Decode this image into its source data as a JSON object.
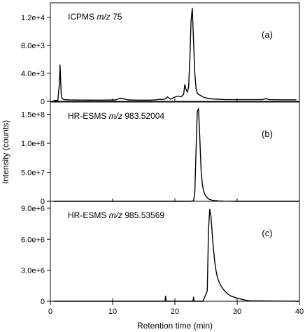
{
  "chart_data": {
    "type": "line",
    "shared_xlabel": "Retention time (min)",
    "shared_ylabel": "Intensity (counts)",
    "xlim": [
      0,
      40
    ],
    "xticks": [
      0,
      10,
      20,
      30,
      40
    ],
    "panels": [
      {
        "label_prefix": "ICPMS ",
        "label_mz": "m/z",
        "label_value": " 75",
        "letter": "(a)",
        "ylim": [
          0,
          14000
        ],
        "yticks": [
          0,
          4000,
          8000,
          12000
        ],
        "ytick_labels": [
          "0",
          "4.0e+3",
          "8.0e+3",
          "1.2e+4"
        ],
        "series": [
          {
            "x": [
              0.5,
              1.2,
              1.45,
              1.55,
              1.65,
              1.75,
              1.9,
              2.2,
              3.0,
              5.0,
              8.0,
              10.5,
              11.2,
              11.8,
              12.5,
              14.0,
              16.0,
              17.0,
              17.5,
              18.0,
              18.5,
              18.8,
              19.0,
              19.3,
              19.6,
              20.0,
              20.5,
              21.0,
              21.4,
              21.6,
              21.8,
              22.0,
              22.2,
              22.4,
              22.6,
              22.8,
              23.0,
              23.2,
              23.4,
              23.6,
              23.8,
              24.2,
              24.6,
              25.2,
              26.0,
              27.0,
              28.0,
              30.0,
              32.0,
              34.0,
              34.6,
              35.2,
              37.0,
              39.5
            ],
            "y": [
              100,
              150,
              2500,
              5200,
              3000,
              900,
              400,
              250,
              200,
              180,
              170,
              200,
              450,
              350,
              200,
              170,
              170,
              220,
              300,
              250,
              350,
              650,
              500,
              300,
              450,
              600,
              750,
              650,
              1000,
              2400,
              1700,
              1300,
              2000,
              6000,
              11500,
              13300,
              8500,
              4000,
              1800,
              1200,
              1000,
              800,
              600,
              450,
              350,
              300,
              260,
              240,
              240,
              240,
              380,
              240,
              220,
              220
            ]
          }
        ]
      },
      {
        "label_prefix": "HR-ESMS ",
        "label_mz": "m/z",
        "label_value": " 983.52004",
        "letter": "(b)",
        "ylim": [
          0,
          170000000
        ],
        "yticks": [
          0,
          50000000,
          100000000,
          150000000
        ],
        "ytick_labels": [
          "0",
          "5.0e+7",
          "1.0e+8",
          "1.5e+8"
        ],
        "series": [
          {
            "x": [
              0.5,
              10,
              20,
              22.5,
              23.0,
              23.2,
              23.4,
              23.6,
              23.8,
              24.0,
              24.2,
              24.4,
              24.6,
              24.9,
              25.2,
              25.6,
              26.2,
              27.0,
              28.0,
              30.0,
              40.0
            ],
            "y": [
              0,
              0,
              0,
              0,
              1000000,
              15000000,
              90000000,
              155000000,
              160000000,
              110000000,
              55000000,
              30000000,
              18000000,
              10000000,
              6000000,
              3000000,
              1500000,
              600000,
              200000,
              0,
              0
            ]
          }
        ]
      },
      {
        "label_prefix": "HR-ESMS ",
        "label_mz": "m/z",
        "label_value": " 985.53569",
        "letter": "(c)",
        "ylim": [
          0,
          9600000
        ],
        "yticks": [
          0,
          3000000,
          6000000,
          9000000
        ],
        "ytick_labels": [
          "0",
          "3.0e+6",
          "6.0e+6",
          "9.0e+6"
        ],
        "series": [
          {
            "x": [
              0.5,
              10,
              18.4,
              18.5,
              18.6,
              19.0,
              22.9,
              23.0,
              23.1,
              24.5,
              25.2,
              25.4,
              25.6,
              25.8,
              26.0,
              26.2,
              26.4,
              26.6,
              26.8,
              27.0,
              27.3,
              27.6,
              28.0,
              28.5,
              29.0,
              30.0,
              31.0,
              32.0,
              40.0
            ],
            "y": [
              0,
              0,
              0,
              500000,
              0,
              0,
              0,
              400000,
              0,
              0,
              1000000,
              7000000,
              8900000,
              8200000,
              6500000,
              5000000,
              3800000,
              3000000,
              2400000,
              2000000,
              1600000,
              1300000,
              1000000,
              700000,
              500000,
              300000,
              150000,
              50000,
              0
            ]
          }
        ]
      }
    ]
  }
}
